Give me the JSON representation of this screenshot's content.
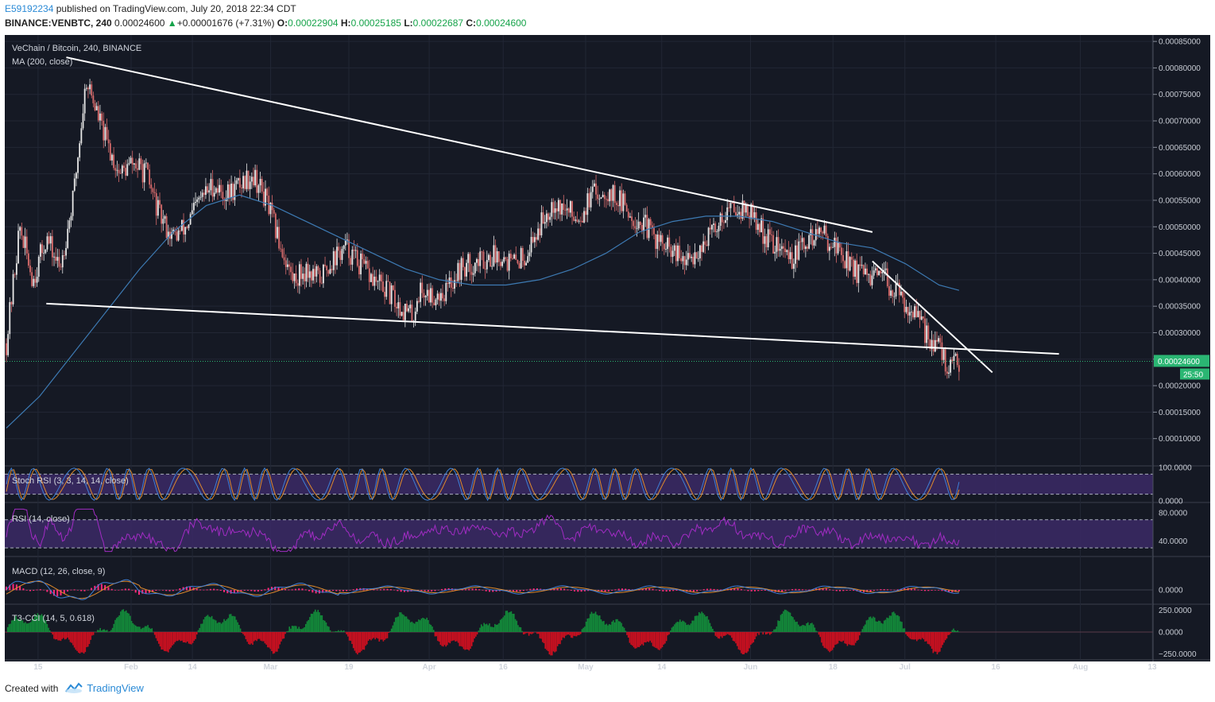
{
  "header": {
    "user": "E59192234",
    "published": "published on TradingView.com, July 20, 2018 22:34 CDT",
    "symbol": "BINANCE:VENBTC, 240",
    "last": "0.00024600",
    "change_arrow": "▲",
    "change": "+0.00001676 (+7.31%)",
    "o_label": "O:",
    "o": "0.00022904",
    "h_label": "H:",
    "h": "0.00025185",
    "l_label": "L:",
    "l": "0.00022687",
    "c_label": "C:",
    "c": "0.00024600"
  },
  "footer": {
    "created_with": "Created with",
    "brand": "TradingView"
  },
  "colors": {
    "background": "#151924",
    "candle_up": "#e8e8e8",
    "candle_down": "#d96c6c",
    "ma_line": "#3d7ab3",
    "trendline": "#ffffff",
    "stoch_k": "#3e7fd6",
    "stoch_d": "#e08a2b",
    "rsi_line": "#a22cc4",
    "band_fill": "#3b2a66",
    "macd_line": "#3e7fd6",
    "macd_signal": "#e08a2b",
    "macd_hist": "#ff2a7a",
    "cci_pos": "#138a3a",
    "cci_neg": "#cc1020",
    "price_tag": "#2bb673"
  },
  "chart_data": {
    "type": "candlestick",
    "title": "VeChain / Bitcoin, 240, BINANCE",
    "overlay": "MA (200, close)",
    "price_axis": {
      "ylim": [
        5e-05,
        0.00085
      ],
      "ticks": [
        "0.00085000",
        "0.00080000",
        "0.00075000",
        "0.00070000",
        "0.00065000",
        "0.00060000",
        "0.00055000",
        "0.00050000",
        "0.00045000",
        "0.00040000",
        "0.00035000",
        "0.00030000",
        "0.00025000",
        "0.00020000",
        "0.00015000",
        "0.00010000"
      ]
    },
    "last_price_label": "0.00024600",
    "countdown": "25:50",
    "x_ticks": [
      "15",
      "Feb",
      "14",
      "Mar",
      "19",
      "Apr",
      "16",
      "May",
      "14",
      "Jun",
      "18",
      "Jul",
      "16",
      "Aug",
      "13"
    ],
    "price_path": [
      [
        0,
        0.00028
      ],
      [
        2,
        0.0005
      ],
      [
        4,
        0.0004
      ],
      [
        6,
        0.00048
      ],
      [
        8,
        0.00042
      ],
      [
        10,
        0.00055
      ],
      [
        12,
        0.00078
      ],
      [
        13.5,
        0.00072
      ],
      [
        15,
        0.00066
      ],
      [
        17,
        0.0006
      ],
      [
        19,
        0.00062
      ],
      [
        21,
        0.0006
      ],
      [
        23,
        0.00052
      ],
      [
        25,
        0.00048
      ],
      [
        27,
        0.0005
      ],
      [
        29,
        0.00055
      ],
      [
        31,
        0.00058
      ],
      [
        33,
        0.00056
      ],
      [
        35,
        0.00058
      ],
      [
        37,
        0.0006
      ],
      [
        39,
        0.00055
      ],
      [
        41,
        0.00047
      ],
      [
        43,
        0.0004
      ],
      [
        45,
        0.00042
      ],
      [
        47,
        0.0004
      ],
      [
        49,
        0.00044
      ],
      [
        51,
        0.00046
      ],
      [
        53,
        0.00043
      ],
      [
        55,
        0.0004
      ],
      [
        57,
        0.00038
      ],
      [
        59,
        0.00035
      ],
      [
        61,
        0.00033
      ],
      [
        62,
        0.00038
      ],
      [
        64,
        0.00037
      ],
      [
        66,
        0.00038
      ],
      [
        68,
        0.00042
      ],
      [
        70,
        0.00043
      ],
      [
        72,
        0.00044
      ],
      [
        74,
        0.00045
      ],
      [
        76,
        0.00043
      ],
      [
        78,
        0.00045
      ],
      [
        80,
        0.0005
      ],
      [
        82,
        0.00055
      ],
      [
        84,
        0.00053
      ],
      [
        86,
        0.00052
      ],
      [
        88,
        0.00056
      ],
      [
        90,
        0.00057
      ],
      [
        92,
        0.00055
      ],
      [
        94,
        0.00052
      ],
      [
        96,
        0.0005
      ],
      [
        98,
        0.00047
      ],
      [
        100,
        0.00045
      ],
      [
        102,
        0.00043
      ],
      [
        104,
        0.00046
      ],
      [
        106,
        0.00049
      ],
      [
        108,
        0.00053
      ],
      [
        110,
        0.00054
      ],
      [
        112,
        0.00052
      ],
      [
        114,
        0.00048
      ],
      [
        116,
        0.00046
      ],
      [
        118,
        0.00044
      ],
      [
        120,
        0.00047
      ],
      [
        122,
        0.00049
      ],
      [
        124,
        0.00047
      ],
      [
        126,
        0.00044
      ],
      [
        128,
        0.00041
      ],
      [
        130,
        0.0004
      ],
      [
        132,
        0.0004
      ],
      [
        134,
        0.00037
      ],
      [
        136,
        0.00034
      ],
      [
        138,
        0.0003
      ],
      [
        140,
        0.00027
      ],
      [
        141.5,
        0.00023
      ],
      [
        142.5,
        0.00024
      ],
      [
        143,
        0.000246
      ]
    ],
    "ma200_path": [
      [
        0,
        0.00012
      ],
      [
        5,
        0.00018
      ],
      [
        10,
        0.00026
      ],
      [
        15,
        0.00034
      ],
      [
        20,
        0.00042
      ],
      [
        25,
        0.00049
      ],
      [
        30,
        0.00054
      ],
      [
        35,
        0.00056
      ],
      [
        40,
        0.00054
      ],
      [
        45,
        0.00051
      ],
      [
        50,
        0.00048
      ],
      [
        55,
        0.00045
      ],
      [
        60,
        0.00042
      ],
      [
        65,
        0.0004
      ],
      [
        70,
        0.00039
      ],
      [
        75,
        0.00039
      ],
      [
        80,
        0.0004
      ],
      [
        85,
        0.00042
      ],
      [
        90,
        0.00045
      ],
      [
        95,
        0.00049
      ],
      [
        100,
        0.00051
      ],
      [
        105,
        0.00052
      ],
      [
        110,
        0.00052
      ],
      [
        115,
        0.00051
      ],
      [
        120,
        0.00049
      ],
      [
        125,
        0.00047
      ],
      [
        130,
        0.00046
      ],
      [
        135,
        0.00043
      ],
      [
        140,
        0.00039
      ],
      [
        143,
        0.00038
      ]
    ],
    "trendlines": [
      {
        "name": "upper-resistance",
        "from": [
          9,
          0.00082
        ],
        "to": [
          130,
          0.00049
        ]
      },
      {
        "name": "lower-support",
        "from": [
          6,
          0.000355
        ],
        "to": [
          158,
          0.00026
        ]
      },
      {
        "name": "short-resistance",
        "from": [
          130,
          0.000435
        ],
        "to": [
          148,
          0.000225
        ]
      }
    ],
    "x_span": [
      0,
      172
    ],
    "panels": [
      {
        "name": "Stoch RSI (3, 3, 14, 14, close)",
        "ticks": [
          "100.0000",
          "0.0000"
        ],
        "ylim": [
          0,
          100
        ],
        "bands": [
          20,
          80
        ]
      },
      {
        "name": "RSI (14, close)",
        "ticks": [
          "80.0000",
          "40.0000"
        ],
        "ylim": [
          20,
          90
        ],
        "bands": [
          30,
          70
        ]
      },
      {
        "name": "MACD (12, 26, close, 9)",
        "ticks": [
          "0.0000"
        ]
      },
      {
        "name": "T3-CCI (14, 5, 0.618)",
        "ticks": [
          "250.0000",
          "0.0000",
          "−250.0000"
        ],
        "ylim": [
          -300,
          300
        ]
      }
    ]
  }
}
